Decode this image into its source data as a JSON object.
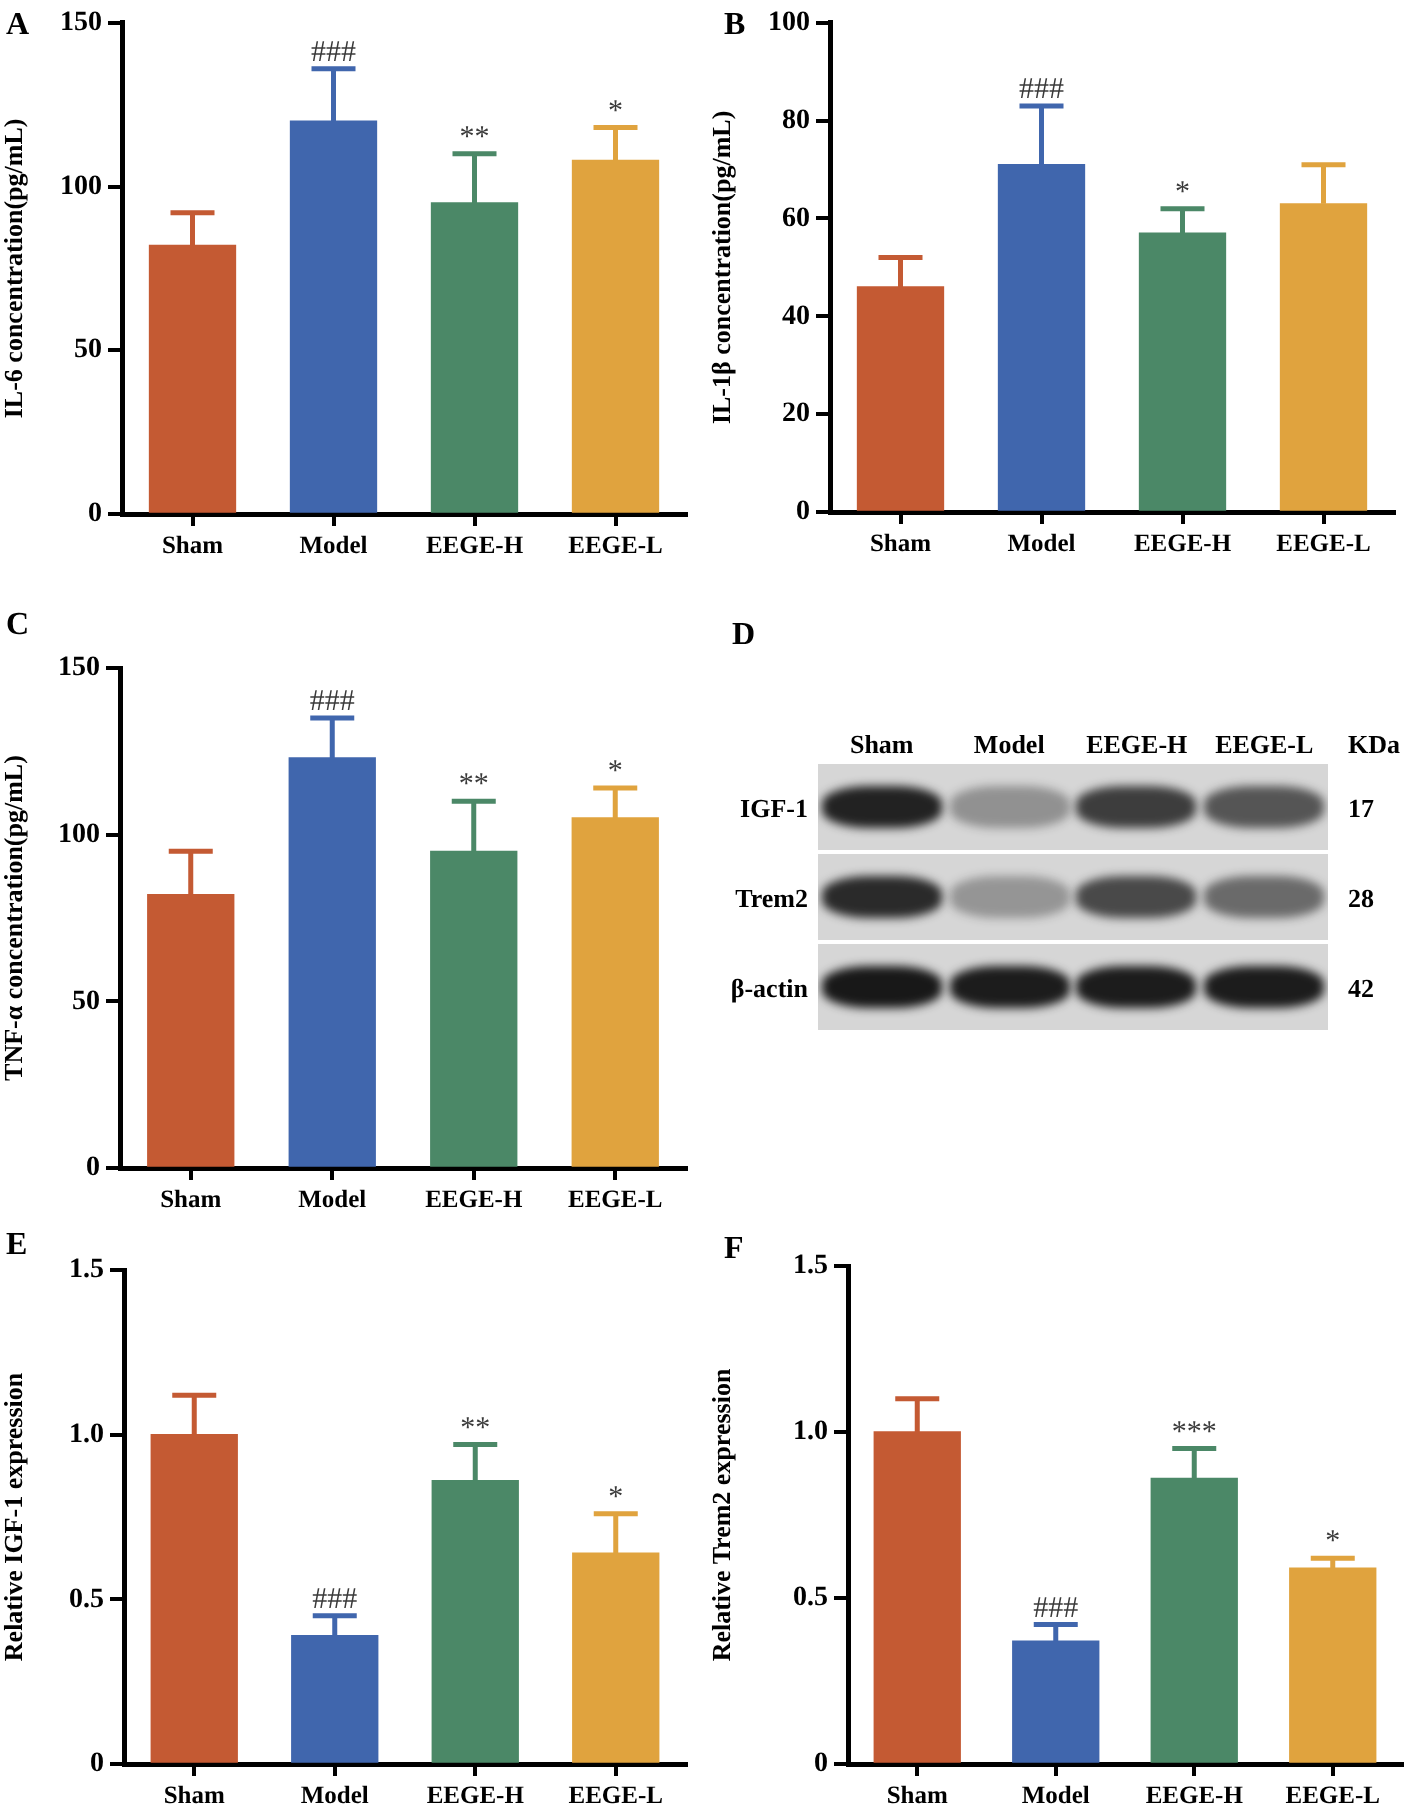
{
  "chart_data": [
    {
      "type": "bar",
      "title": "A",
      "ylabel": "IL-6 concentration(pg/mL)",
      "categories": [
        "Sham",
        "Model",
        "EEGE-H",
        "EEGE-L"
      ],
      "values": [
        82,
        120,
        95,
        108
      ],
      "colors": [
        "#c45a33",
        "#4066ad",
        "#4b8867",
        "#e0a33e"
      ],
      "errors": [
        [
          82,
          92
        ],
        [
          120,
          136
        ],
        [
          95,
          110
        ],
        [
          108,
          118
        ]
      ],
      "value_labels": [
        null,
        "###",
        "**",
        "*"
      ],
      "ylim": [
        0,
        150
      ],
      "yticks": [
        0,
        50,
        100,
        150
      ]
    },
    {
      "type": "bar",
      "title": "B",
      "ylabel": "IL-1β concentration(pg/mL)",
      "categories": [
        "Sham",
        "Model",
        "EEGE-H",
        "EEGE-L"
      ],
      "values": [
        46,
        71,
        57,
        63
      ],
      "colors": [
        "#c45a33",
        "#4066ad",
        "#4b8867",
        "#e0a33e"
      ],
      "errors": [
        [
          46,
          52
        ],
        [
          71,
          83
        ],
        [
          57,
          62
        ],
        [
          63,
          71
        ]
      ],
      "value_labels": [
        null,
        "###",
        "*",
        null
      ],
      "ylim": [
        0,
        100
      ],
      "yticks": [
        0,
        20,
        40,
        60,
        80,
        100
      ]
    },
    {
      "type": "bar",
      "title": "C",
      "ylabel": "TNF-α concentration(pg/mL)",
      "categories": [
        "Sham",
        "Model",
        "EEGE-H",
        "EEGE-L"
      ],
      "values": [
        82,
        123,
        95,
        105
      ],
      "colors": [
        "#c45a33",
        "#4066ad",
        "#4b8867",
        "#e0a33e"
      ],
      "errors": [
        [
          82,
          95
        ],
        [
          123,
          135
        ],
        [
          95,
          110
        ],
        [
          105,
          114
        ]
      ],
      "value_labels": [
        null,
        "###",
        "**",
        "*"
      ],
      "ylim": [
        0,
        150
      ],
      "yticks": [
        0,
        50,
        100,
        150
      ]
    },
    {
      "type": "other",
      "title": "D",
      "categories": [
        "Sham",
        "Model",
        "EEGE-H",
        "EEGE-L"
      ],
      "y_categories": [
        "IGF-1",
        "Trem2",
        "β-actin"
      ],
      "y2_categories": [
        "17",
        "28",
        "42"
      ],
      "annotations": [
        "KDa"
      ]
    },
    {
      "type": "bar",
      "title": "E",
      "ylabel": "Relative IGF-1 expression",
      "categories": [
        "Sham",
        "Model",
        "EEGE-H",
        "EEGE-L"
      ],
      "values": [
        1.0,
        0.39,
        0.86,
        0.64
      ],
      "colors": [
        "#c45a33",
        "#4066ad",
        "#4b8867",
        "#e0a33e"
      ],
      "errors": [
        [
          1.0,
          1.12
        ],
        [
          0.39,
          0.45
        ],
        [
          0.86,
          0.97
        ],
        [
          0.64,
          0.76
        ]
      ],
      "value_labels": [
        null,
        "###",
        "**",
        "*"
      ],
      "ylim": [
        0,
        1.5
      ],
      "yticks": [
        0,
        0.5,
        {
          "value": 1,
          "label": "1.0"
        },
        1.5
      ]
    },
    {
      "type": "bar",
      "title": "F",
      "ylabel": "Relative Trem2 expression",
      "categories": [
        "Sham",
        "Model",
        "EEGE-H",
        "EEGE-L"
      ],
      "values": [
        1.0,
        0.37,
        0.86,
        0.59
      ],
      "colors": [
        "#c45a33",
        "#4066ad",
        "#4b8867",
        "#e0a33e"
      ],
      "errors": [
        [
          1.0,
          1.1
        ],
        [
          0.37,
          0.42
        ],
        [
          0.86,
          0.95
        ],
        [
          0.59,
          0.62
        ]
      ],
      "value_labels": [
        null,
        "###",
        "***",
        "*"
      ],
      "ylim": [
        0,
        1.5
      ],
      "yticks": [
        0,
        0.5,
        {
          "value": 1,
          "label": "1.0"
        },
        1.5
      ]
    }
  ]
}
